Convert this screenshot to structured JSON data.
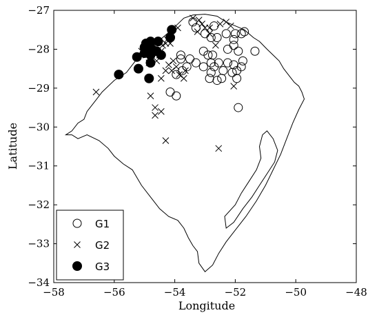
{
  "chart_data": {
    "type": "scatter",
    "xlabel": "Longitude",
    "ylabel": "Latitude",
    "xlim": [
      -58,
      -48
    ],
    "ylim": [
      -34,
      -27
    ],
    "xticks": [
      -58,
      -56,
      -54,
      -52,
      -50,
      -48
    ],
    "yticks": [
      -27,
      -28,
      -29,
      -30,
      -31,
      -32,
      -33,
      -34
    ],
    "tick_labels_x": [
      "−58",
      "−56",
      "−54",
      "−52",
      "−50",
      "−48"
    ],
    "tick_labels_y": [
      "−27",
      "−28",
      "−29",
      "−30",
      "−31",
      "−32",
      "−33",
      "−34"
    ],
    "grid": false,
    "legend_position": "bottom-left",
    "boundary": [
      [
        -57.6,
        -30.2
      ],
      [
        -57.4,
        -30.1
      ],
      [
        -57.2,
        -29.9
      ],
      [
        -57.0,
        -29.8
      ],
      [
        -56.9,
        -29.6
      ],
      [
        -56.6,
        -29.3
      ],
      [
        -56.4,
        -29.1
      ],
      [
        -56.0,
        -28.8
      ],
      [
        -55.6,
        -28.6
      ],
      [
        -55.3,
        -28.3
      ],
      [
        -55.0,
        -28.1
      ],
      [
        -54.7,
        -27.9
      ],
      [
        -54.4,
        -27.7
      ],
      [
        -54.1,
        -27.5
      ],
      [
        -53.9,
        -27.35
      ],
      [
        -53.7,
        -27.2
      ],
      [
        -53.4,
        -27.12
      ],
      [
        -53.0,
        -27.1
      ],
      [
        -52.6,
        -27.15
      ],
      [
        -52.3,
        -27.3
      ],
      [
        -52.0,
        -27.4
      ],
      [
        -51.7,
        -27.5
      ],
      [
        -51.4,
        -27.7
      ],
      [
        -51.2,
        -27.8
      ],
      [
        -50.95,
        -28.0
      ],
      [
        -50.75,
        -28.15
      ],
      [
        -50.55,
        -28.3
      ],
      [
        -50.4,
        -28.5
      ],
      [
        -50.2,
        -28.7
      ],
      [
        -50.05,
        -28.85
      ],
      [
        -49.9,
        -28.95
      ],
      [
        -49.8,
        -29.1
      ],
      [
        -49.72,
        -29.28
      ],
      [
        -49.9,
        -29.55
      ],
      [
        -50.1,
        -29.9
      ],
      [
        -50.3,
        -30.3
      ],
      [
        -50.5,
        -30.7
      ],
      [
        -50.75,
        -31.1
      ],
      [
        -51.0,
        -31.5
      ],
      [
        -51.3,
        -31.9
      ],
      [
        -51.65,
        -32.3
      ],
      [
        -52.0,
        -32.65
      ],
      [
        -52.3,
        -32.95
      ],
      [
        -52.55,
        -33.25
      ],
      [
        -52.75,
        -33.55
      ],
      [
        -53.0,
        -33.72
      ],
      [
        -53.2,
        -33.5
      ],
      [
        -53.25,
        -33.2
      ],
      [
        -53.4,
        -33.05
      ],
      [
        -53.55,
        -32.85
      ],
      [
        -53.7,
        -32.6
      ],
      [
        -53.9,
        -32.4
      ],
      [
        -54.2,
        -32.3
      ],
      [
        -54.5,
        -32.1
      ],
      [
        -54.8,
        -31.8
      ],
      [
        -55.1,
        -31.5
      ],
      [
        -55.4,
        -31.1
      ],
      [
        -55.7,
        -30.95
      ],
      [
        -56.0,
        -30.75
      ],
      [
        -56.2,
        -30.55
      ],
      [
        -56.5,
        -30.35
      ],
      [
        -56.9,
        -30.2
      ],
      [
        -57.2,
        -30.3
      ],
      [
        -57.4,
        -30.2
      ],
      [
        -57.6,
        -30.2
      ]
    ],
    "lagoon": [
      [
        -50.95,
        -30.1
      ],
      [
        -50.75,
        -30.3
      ],
      [
        -50.6,
        -30.6
      ],
      [
        -50.7,
        -30.9
      ],
      [
        -50.95,
        -31.2
      ],
      [
        -51.2,
        -31.5
      ],
      [
        -51.45,
        -31.8
      ],
      [
        -51.75,
        -32.1
      ],
      [
        -52.05,
        -32.45
      ],
      [
        -52.3,
        -32.6
      ],
      [
        -52.35,
        -32.3
      ],
      [
        -52.0,
        -32.0
      ],
      [
        -51.8,
        -31.7
      ],
      [
        -51.55,
        -31.4
      ],
      [
        -51.3,
        -31.1
      ],
      [
        -51.15,
        -30.8
      ],
      [
        -51.2,
        -30.5
      ],
      [
        -51.1,
        -30.2
      ],
      [
        -50.95,
        -30.1
      ]
    ],
    "series": [
      {
        "name": "G1",
        "marker": "circle-open",
        "points": [
          [
            -53.4,
            -27.3
          ],
          [
            -53.3,
            -27.45
          ],
          [
            -53.0,
            -27.6
          ],
          [
            -52.7,
            -27.4
          ],
          [
            -52.6,
            -27.7
          ],
          [
            -52.8,
            -27.7
          ],
          [
            -52.3,
            -27.6
          ],
          [
            -52.0,
            -27.6
          ],
          [
            -52.05,
            -27.75
          ],
          [
            -51.8,
            -27.6
          ],
          [
            -51.7,
            -27.55
          ],
          [
            -51.35,
            -28.05
          ],
          [
            -53.8,
            -28.15
          ],
          [
            -53.8,
            -28.25
          ],
          [
            -53.5,
            -28.25
          ],
          [
            -53.3,
            -28.35
          ],
          [
            -53.6,
            -28.45
          ],
          [
            -53.75,
            -28.55
          ],
          [
            -53.95,
            -28.65
          ],
          [
            -53.05,
            -28.05
          ],
          [
            -52.9,
            -28.15
          ],
          [
            -52.75,
            -28.15
          ],
          [
            -53.05,
            -28.45
          ],
          [
            -52.8,
            -28.35
          ],
          [
            -52.7,
            -28.45
          ],
          [
            -52.55,
            -28.35
          ],
          [
            -52.25,
            -28.35
          ],
          [
            -52.4,
            -28.55
          ],
          [
            -52.8,
            -28.6
          ],
          [
            -52.85,
            -28.75
          ],
          [
            -52.6,
            -28.8
          ],
          [
            -52.45,
            -28.75
          ],
          [
            -52.1,
            -28.6
          ],
          [
            -52.05,
            -28.4
          ],
          [
            -51.95,
            -28.55
          ],
          [
            -51.95,
            -28.75
          ],
          [
            -51.9,
            -28.05
          ],
          [
            -52.25,
            -28.0
          ],
          [
            -52.05,
            -27.9
          ],
          [
            -51.75,
            -28.3
          ],
          [
            -51.8,
            -28.45
          ],
          [
            -54.15,
            -29.1
          ],
          [
            -53.95,
            -29.2
          ],
          [
            -51.9,
            -29.5
          ]
        ]
      },
      {
        "name": "G2",
        "marker": "x",
        "points": [
          [
            -53.4,
            -27.2
          ],
          [
            -53.2,
            -27.25
          ],
          [
            -53.1,
            -27.35
          ],
          [
            -53.0,
            -27.45
          ],
          [
            -52.85,
            -27.45
          ],
          [
            -53.25,
            -27.55
          ],
          [
            -53.9,
            -27.45
          ],
          [
            -54.1,
            -27.6
          ],
          [
            -54.25,
            -27.75
          ],
          [
            -54.3,
            -27.85
          ],
          [
            -54.4,
            -27.9
          ],
          [
            -54.45,
            -28.05
          ],
          [
            -54.5,
            -28.15
          ],
          [
            -54.6,
            -28.3
          ],
          [
            -54.85,
            -28.35
          ],
          [
            -54.95,
            -28.15
          ],
          [
            -55.1,
            -28.05
          ],
          [
            -54.15,
            -27.85
          ],
          [
            -54.05,
            -28.3
          ],
          [
            -54.2,
            -28.4
          ],
          [
            -54.1,
            -28.55
          ],
          [
            -53.95,
            -28.45
          ],
          [
            -53.85,
            -28.65
          ],
          [
            -53.7,
            -28.75
          ],
          [
            -53.65,
            -28.55
          ],
          [
            -54.3,
            -28.55
          ],
          [
            -54.45,
            -28.75
          ],
          [
            -52.5,
            -27.35
          ],
          [
            -52.3,
            -27.3
          ],
          [
            -52.15,
            -27.4
          ],
          [
            -52.85,
            -27.6
          ],
          [
            -52.65,
            -27.9
          ],
          [
            -52.05,
            -28.95
          ],
          [
            -54.8,
            -29.2
          ],
          [
            -54.65,
            -29.5
          ],
          [
            -54.45,
            -29.6
          ],
          [
            -54.65,
            -29.7
          ],
          [
            -56.6,
            -29.1
          ],
          [
            -54.3,
            -30.35
          ],
          [
            -52.55,
            -30.55
          ]
        ]
      },
      {
        "name": "G3",
        "marker": "circle-filled",
        "points": [
          [
            -54.1,
            -27.5
          ],
          [
            -54.15,
            -27.7
          ],
          [
            -54.55,
            -27.8
          ],
          [
            -54.8,
            -27.8
          ],
          [
            -54.95,
            -27.85
          ],
          [
            -55.0,
            -27.95
          ],
          [
            -54.75,
            -28.0
          ],
          [
            -54.6,
            -28.05
          ],
          [
            -55.0,
            -28.1
          ],
          [
            -54.8,
            -28.15
          ],
          [
            -54.45,
            -28.15
          ],
          [
            -55.25,
            -28.2
          ],
          [
            -54.8,
            -28.35
          ],
          [
            -55.2,
            -28.5
          ],
          [
            -54.85,
            -28.75
          ],
          [
            -55.85,
            -28.65
          ]
        ]
      }
    ]
  }
}
